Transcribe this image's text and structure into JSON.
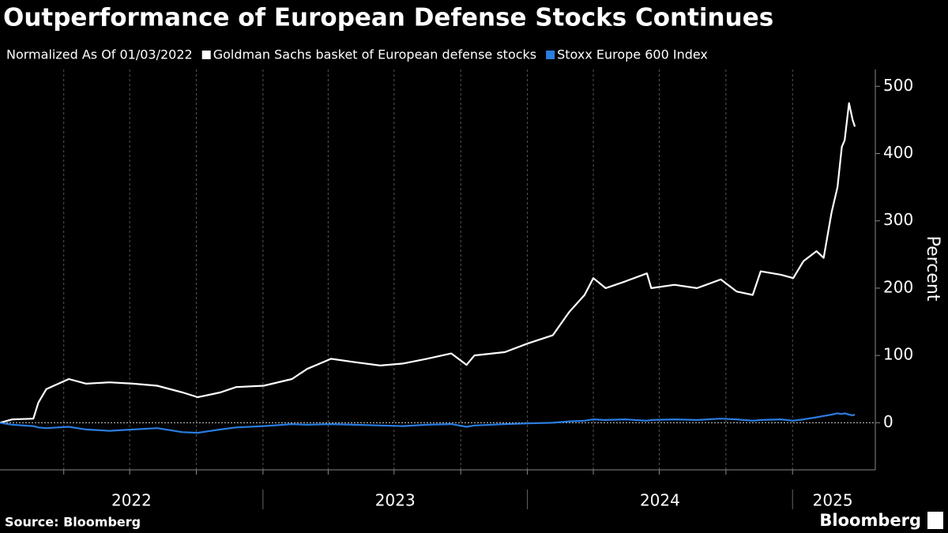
{
  "chart_data": {
    "type": "line",
    "title": "Outperformance of European Defense Stocks Continues",
    "subtitle": "Normalized As Of 01/03/2022",
    "y_label": "Percent",
    "source": "Source: Bloomberg",
    "logo": "Bloomberg",
    "x": [
      "2022-01-03",
      "2022-01-20",
      "2022-02-18",
      "2022-02-25",
      "2022-03-08",
      "2022-04-08",
      "2022-05-02",
      "2022-06-03",
      "2022-07-06",
      "2022-08-08",
      "2022-09-12",
      "2022-10-03",
      "2022-11-03",
      "2022-11-25",
      "2023-01-02",
      "2023-02-10",
      "2023-03-03",
      "2023-04-05",
      "2023-05-08",
      "2023-06-12",
      "2023-07-13",
      "2023-08-15",
      "2023-09-18",
      "2023-10-09",
      "2023-10-20",
      "2023-12-01",
      "2024-01-02",
      "2024-02-05",
      "2024-02-28",
      "2024-03-20",
      "2024-04-01",
      "2024-04-18",
      "2024-05-15",
      "2024-06-14",
      "2024-06-20",
      "2024-07-22",
      "2024-08-22",
      "2024-09-24",
      "2024-10-16",
      "2024-11-07",
      "2024-11-18",
      "2024-12-16",
      "2025-01-02",
      "2025-01-16",
      "2025-02-03",
      "2025-02-13",
      "2025-02-24",
      "2025-03-04",
      "2025-03-10",
      "2025-03-14",
      "2025-03-20",
      "2025-03-25",
      "2025-03-28"
    ],
    "series": [
      {
        "name": "Goldman Sachs basket of European defense stocks",
        "color": "#ffffff",
        "values": [
          0,
          5,
          6,
          30,
          50,
          65,
          58,
          60,
          58,
          55,
          45,
          38,
          45,
          53,
          55,
          65,
          80,
          95,
          90,
          85,
          88,
          95,
          103,
          86,
          100,
          105,
          118,
          130,
          165,
          190,
          215,
          200,
          210,
          222,
          200,
          205,
          200,
          213,
          195,
          190,
          225,
          220,
          215,
          240,
          255,
          245,
          313,
          350,
          410,
          420,
          475,
          450,
          440
        ]
      },
      {
        "name": "Stoxx Europe 600 Index",
        "color": "#2b7de0",
        "values": [
          0,
          -3,
          -5,
          -7,
          -8,
          -6,
          -10,
          -12,
          -10,
          -8,
          -14,
          -15,
          -10,
          -7,
          -5,
          -2,
          -3,
          -2,
          -3,
          -4,
          -5,
          -3,
          -2,
          -6,
          -4,
          -2,
          -1,
          0,
          2,
          3,
          5,
          4,
          5,
          3,
          4,
          5,
          4,
          6,
          5,
          3,
          4,
          5,
          3,
          5,
          8,
          10,
          12,
          14,
          13,
          14,
          12,
          11,
          12
        ]
      }
    ],
    "xlim": [
      "2022-01-03",
      "2025-04-22"
    ],
    "xticks": [
      {
        "value": "2022-01-01",
        "label": "2022"
      },
      {
        "value": "2023-01-01",
        "label": "2023"
      },
      {
        "value": "2024-01-01",
        "label": "2024"
      },
      {
        "value": "2025-01-01",
        "label": "2025"
      }
    ],
    "xgrid": [
      "2022-04-01",
      "2022-07-01",
      "2022-10-01",
      "2023-01-01",
      "2023-04-01",
      "2023-07-01",
      "2023-10-01",
      "2024-01-01",
      "2024-04-01",
      "2024-07-01",
      "2024-10-01",
      "2025-01-01"
    ],
    "ylim": [
      -70,
      525
    ],
    "yticks": [
      0,
      100,
      200,
      300,
      400,
      500
    ],
    "grid": true
  }
}
